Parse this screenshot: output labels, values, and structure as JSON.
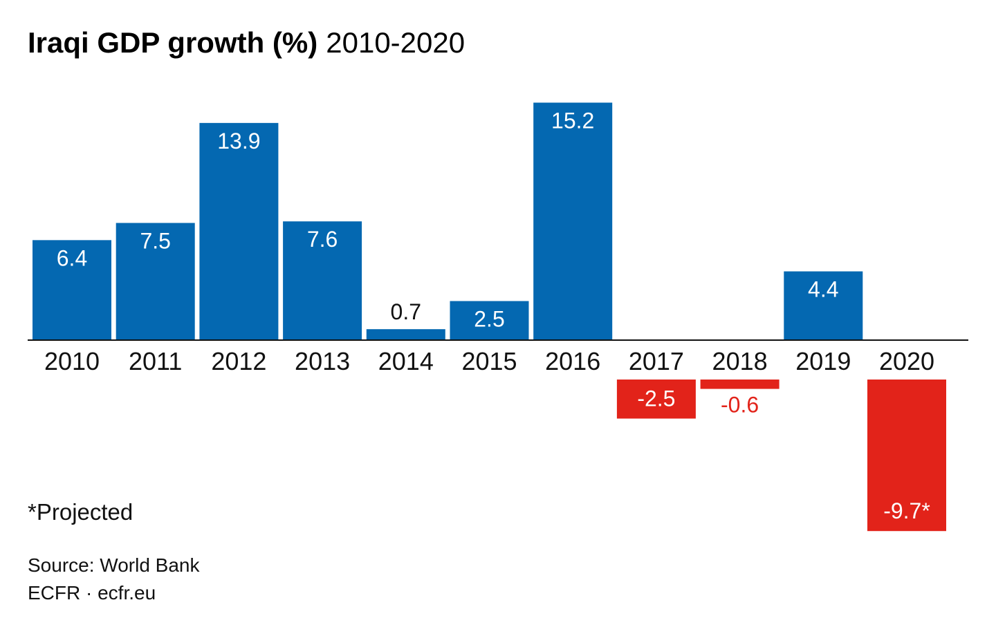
{
  "header": {
    "title_bold": "Iraqi GDP growth (%)",
    "title_rest": "2010-2020"
  },
  "chart_data": {
    "type": "bar",
    "title": "Iraqi GDP growth (%) 2010-2020",
    "categories": [
      "2010",
      "2011",
      "2012",
      "2013",
      "2014",
      "2015",
      "2016",
      "2017",
      "2018",
      "2019",
      "2020"
    ],
    "values": [
      6.4,
      7.5,
      13.9,
      7.6,
      0.7,
      2.5,
      15.2,
      -2.5,
      -0.6,
      4.4,
      -9.7
    ],
    "value_labels": [
      "6.4",
      "7.5",
      "13.9",
      "7.6",
      "0.7",
      "2.5",
      "15.2",
      "-2.5",
      "-0.6",
      "4.4",
      "-9.7*"
    ],
    "projected": [
      false,
      false,
      false,
      false,
      false,
      false,
      false,
      false,
      false,
      false,
      true
    ],
    "colors": {
      "positive": "#0468b1",
      "negative": "#e2231a"
    },
    "grid": false,
    "legend": "none"
  },
  "footer": {
    "note": "*Projected",
    "source": "Source: World Bank",
    "credit": "ECFR · ecfr.eu"
  }
}
